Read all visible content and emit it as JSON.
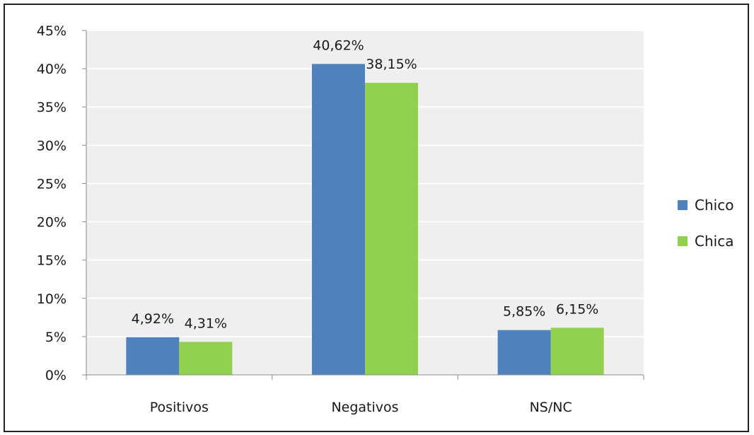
{
  "chart_data": {
    "type": "bar",
    "title": "",
    "xlabel": "",
    "ylabel": "",
    "categories": [
      "Positivos",
      "Negativos",
      "NS/NC"
    ],
    "series": [
      {
        "name": "Chico",
        "color": "#4F81BD",
        "values": [
          4.92,
          40.62,
          5.85
        ],
        "labels": [
          "4,92%",
          "40,62%",
          "5,85%"
        ]
      },
      {
        "name": "Chica",
        "color": "#92D050",
        "values": [
          4.31,
          38.15,
          6.15
        ],
        "labels": [
          "4,31%",
          "38,15%",
          "6,15%"
        ]
      }
    ],
    "ylim": [
      0,
      45
    ],
    "yticks": [
      0,
      5,
      10,
      15,
      20,
      25,
      30,
      35,
      40,
      45
    ],
    "ytick_labels": [
      "0%",
      "5%",
      "10%",
      "15%",
      "20%",
      "25%",
      "30%",
      "35%",
      "40%",
      "45%"
    ],
    "grid": true,
    "plot_background": "#EFEFEF",
    "legend_position": "right"
  }
}
